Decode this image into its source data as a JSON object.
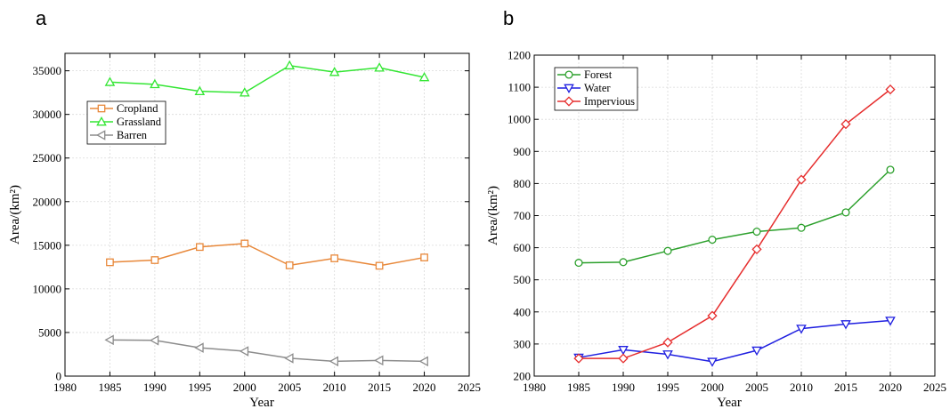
{
  "chart_data": [
    {
      "panel": "a",
      "type": "line",
      "xlabel": "Year",
      "ylabel": "Area/(km²)",
      "xlim": [
        1980,
        2025
      ],
      "ylim": [
        0,
        37000
      ],
      "xticks": [
        1980,
        1985,
        1990,
        1995,
        2000,
        2005,
        2010,
        2015,
        2020,
        2025
      ],
      "yticks": [
        0,
        5000,
        10000,
        15000,
        20000,
        25000,
        30000,
        35000
      ],
      "grid": true,
      "legend_position": "upper-left",
      "x": [
        1985,
        1990,
        1995,
        2000,
        2005,
        2010,
        2015,
        2020
      ],
      "series": [
        {
          "name": "Cropland",
          "marker": "square",
          "color": "#e8883a",
          "values": [
            13050,
            13300,
            14800,
            15200,
            12700,
            13500,
            12650,
            13600
          ]
        },
        {
          "name": "Grassland",
          "marker": "triangle-up",
          "color": "#33e633",
          "values": [
            33700,
            33450,
            32650,
            32500,
            35600,
            34850,
            35350,
            34250
          ]
        },
        {
          "name": "Barren",
          "marker": "triangle-left",
          "color": "#8c8c8c",
          "values": [
            4150,
            4100,
            3250,
            2850,
            2050,
            1700,
            1800,
            1700
          ]
        }
      ]
    },
    {
      "panel": "b",
      "type": "line",
      "xlabel": "Year",
      "ylabel": "Area/(km²)",
      "xlim": [
        1980,
        2025
      ],
      "ylim": [
        200,
        1200
      ],
      "xticks": [
        1980,
        1985,
        1990,
        1995,
        2000,
        2005,
        2010,
        2015,
        2020,
        2025
      ],
      "yticks": [
        200,
        300,
        400,
        500,
        600,
        700,
        800,
        900,
        1000,
        1100,
        1200
      ],
      "grid": true,
      "legend_position": "upper-left",
      "x": [
        1985,
        1990,
        1995,
        2000,
        2005,
        2010,
        2015,
        2020
      ],
      "series": [
        {
          "name": "Forest",
          "marker": "circle",
          "color": "#2ca02c",
          "values": [
            553,
            555,
            590,
            625,
            650,
            662,
            710,
            843
          ]
        },
        {
          "name": "Water",
          "marker": "triangle-down",
          "color": "#1f1fe0",
          "values": [
            258,
            282,
            268,
            245,
            280,
            348,
            362,
            373
          ]
        },
        {
          "name": "Impervious",
          "marker": "diamond",
          "color": "#e62e2e",
          "values": [
            255,
            255,
            305,
            388,
            595,
            812,
            985,
            1093
          ]
        }
      ]
    }
  ]
}
